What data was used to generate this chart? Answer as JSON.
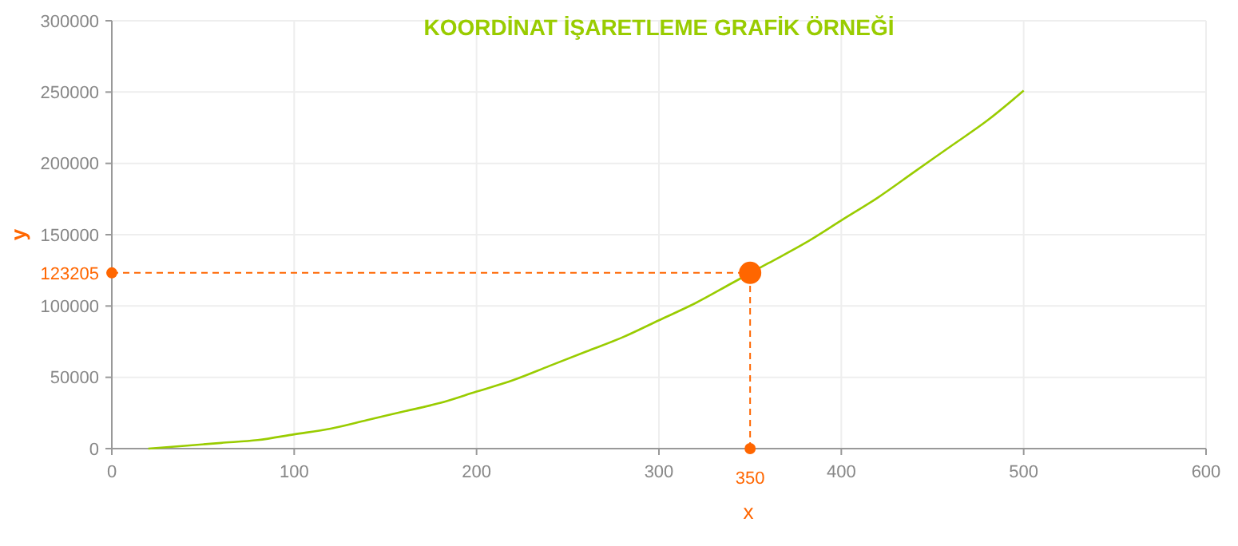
{
  "chart_data": {
    "type": "line",
    "title": "KOORDİNAT İŞARETLEME GRAFİK ÖRNEĞİ",
    "xlabel": "x",
    "ylabel": "y",
    "xlim": [
      0,
      600
    ],
    "xticks": [
      0,
      100,
      200,
      300,
      400,
      500,
      600
    ],
    "ylim": [
      0,
      300000
    ],
    "yticks": [
      0,
      50000,
      100000,
      150000,
      200000,
      250000,
      300000
    ],
    "grid": true,
    "series": [
      {
        "type": "line",
        "color": "#99cc00",
        "marker": "none",
        "x": [
          20,
          40,
          60,
          80,
          100,
          120,
          140,
          160,
          180,
          200,
          220,
          240,
          260,
          280,
          300,
          320,
          340,
          350,
          360,
          380,
          400,
          420,
          440,
          460,
          480,
          500
        ],
        "values": [
          0,
          2000,
          4000,
          6000,
          10000,
          14000,
          20000,
          26000,
          32000,
          40000,
          48000,
          58000,
          68000,
          78000,
          90000,
          102000,
          116000,
          123000,
          130000,
          144000,
          160000,
          176000,
          194000,
          212000,
          230000,
          251000
        ]
      },
      {
        "type": "scatter",
        "color": "#ff6600",
        "marker": "circle",
        "x": [
          350
        ],
        "values": [
          123205
        ]
      }
    ],
    "ref_lines": [
      {
        "axis": "x",
        "value": 350,
        "label": "350",
        "color": "#ff6600",
        "line_style": "dashed"
      },
      {
        "axis": "y",
        "value": 123205,
        "label": "123205",
        "color": "#ff6600",
        "line_style": "dashed"
      }
    ]
  }
}
